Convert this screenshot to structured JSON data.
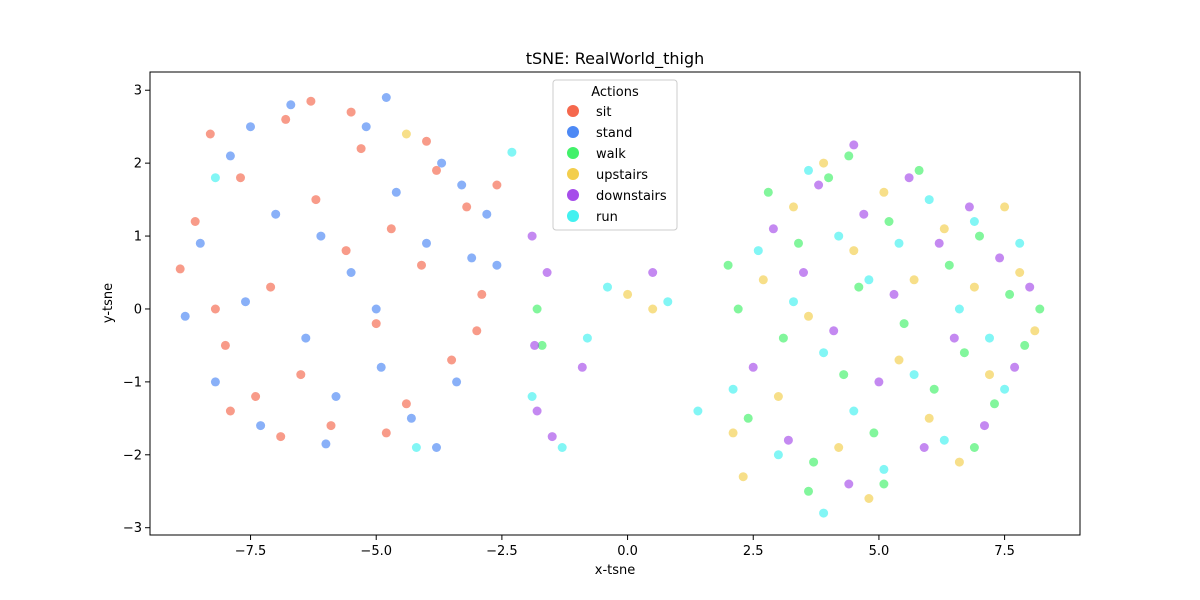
{
  "chart_data": {
    "type": "scatter",
    "title": "tSNE: RealWorld_thigh",
    "xlabel": "x-tsne",
    "ylabel": "y-tsne",
    "xlim": [
      -9.5,
      9.0
    ],
    "ylim": [
      -3.1,
      3.25
    ],
    "xticks": [
      -7.5,
      -5.0,
      -2.5,
      0.0,
      2.5,
      5.0,
      7.5
    ],
    "xtick_labels": [
      "−7.5",
      "−5.0",
      "−2.5",
      "0.0",
      "2.5",
      "5.0",
      "7.5"
    ],
    "yticks": [
      -3,
      -2,
      -1,
      0,
      1,
      2,
      3
    ],
    "ytick_labels": [
      "−3",
      "−2",
      "−1",
      "0",
      "1",
      "2",
      "3"
    ],
    "grid": false,
    "legend": {
      "title": "Actions",
      "placement": "upper-center"
    },
    "series": [
      {
        "name": "sit",
        "color": "#f4583a",
        "points": [
          [
            -8.9,
            0.55
          ],
          [
            -8.6,
            1.2
          ],
          [
            -8.3,
            2.4
          ],
          [
            -8.0,
            -0.5
          ],
          [
            -7.7,
            1.8
          ],
          [
            -7.4,
            -1.2
          ],
          [
            -7.1,
            0.3
          ],
          [
            -6.8,
            2.6
          ],
          [
            -6.5,
            -0.9
          ],
          [
            -6.2,
            1.5
          ],
          [
            -5.9,
            -1.6
          ],
          [
            -5.6,
            0.8
          ],
          [
            -5.3,
            2.2
          ],
          [
            -5.0,
            -0.2
          ],
          [
            -4.7,
            1.1
          ],
          [
            -4.4,
            -1.3
          ],
          [
            -4.1,
            0.6
          ],
          [
            -3.8,
            1.9
          ],
          [
            -3.5,
            -0.7
          ],
          [
            -3.2,
            1.4
          ],
          [
            -2.9,
            0.2
          ],
          [
            -2.6,
            1.7
          ],
          [
            -6.3,
            2.85
          ],
          [
            -4.8,
            -1.7
          ],
          [
            -7.9,
            -1.4
          ],
          [
            -3.0,
            -0.3
          ],
          [
            -8.2,
            0.0
          ],
          [
            -5.5,
            2.7
          ],
          [
            -6.9,
            -1.75
          ],
          [
            -4.0,
            2.3
          ]
        ]
      },
      {
        "name": "stand",
        "color": "#3a7cf4",
        "points": [
          [
            -8.8,
            -0.1
          ],
          [
            -8.5,
            0.9
          ],
          [
            -8.2,
            -1.0
          ],
          [
            -7.9,
            2.1
          ],
          [
            -7.6,
            0.1
          ],
          [
            -7.3,
            -1.6
          ],
          [
            -7.0,
            1.3
          ],
          [
            -6.7,
            2.8
          ],
          [
            -6.4,
            -0.4
          ],
          [
            -6.1,
            1.0
          ],
          [
            -5.8,
            -1.2
          ],
          [
            -5.5,
            0.5
          ],
          [
            -5.2,
            2.5
          ],
          [
            -4.9,
            -0.8
          ],
          [
            -4.6,
            1.6
          ],
          [
            -4.3,
            -1.5
          ],
          [
            -4.0,
            0.9
          ],
          [
            -3.7,
            2.0
          ],
          [
            -3.4,
            -1.0
          ],
          [
            -3.1,
            0.7
          ],
          [
            -2.8,
            1.3
          ],
          [
            -2.6,
            0.6
          ],
          [
            -4.8,
            2.9
          ],
          [
            -3.8,
            -1.9
          ],
          [
            -6.0,
            -1.85
          ],
          [
            -7.5,
            2.5
          ],
          [
            -3.3,
            1.7
          ],
          [
            -5.0,
            0.0
          ]
        ]
      },
      {
        "name": "walk",
        "color": "#2ef05a",
        "points": [
          [
            2.0,
            0.6
          ],
          [
            2.4,
            -1.5
          ],
          [
            2.8,
            1.6
          ],
          [
            3.1,
            -0.4
          ],
          [
            3.4,
            0.9
          ],
          [
            3.7,
            -2.1
          ],
          [
            4.0,
            1.8
          ],
          [
            4.3,
            -0.9
          ],
          [
            4.6,
            0.3
          ],
          [
            4.9,
            -1.7
          ],
          [
            5.2,
            1.2
          ],
          [
            5.5,
            -0.2
          ],
          [
            5.8,
            1.9
          ],
          [
            6.1,
            -1.1
          ],
          [
            6.4,
            0.6
          ],
          [
            6.7,
            -0.6
          ],
          [
            7.0,
            1.0
          ],
          [
            7.3,
            -1.3
          ],
          [
            7.6,
            0.2
          ],
          [
            7.9,
            -0.5
          ],
          [
            8.2,
            0.0
          ],
          [
            3.6,
            -2.5
          ],
          [
            5.1,
            -2.4
          ],
          [
            4.4,
            2.1
          ],
          [
            2.2,
            0.0
          ],
          [
            6.9,
            -1.9
          ],
          [
            -1.8,
            0.0
          ],
          [
            -1.7,
            -0.5
          ]
        ]
      },
      {
        "name": "upstairs",
        "color": "#f2c93a",
        "points": [
          [
            2.3,
            -2.3
          ],
          [
            2.7,
            0.4
          ],
          [
            3.0,
            -1.2
          ],
          [
            3.3,
            1.4
          ],
          [
            3.6,
            -0.1
          ],
          [
            3.9,
            2.0
          ],
          [
            4.2,
            -1.9
          ],
          [
            4.5,
            0.8
          ],
          [
            4.8,
            -2.6
          ],
          [
            5.1,
            1.6
          ],
          [
            5.4,
            -0.7
          ],
          [
            5.7,
            0.4
          ],
          [
            6.0,
            -1.5
          ],
          [
            6.3,
            1.1
          ],
          [
            6.6,
            -2.1
          ],
          [
            6.9,
            0.3
          ],
          [
            7.2,
            -0.9
          ],
          [
            7.5,
            1.4
          ],
          [
            7.8,
            0.5
          ],
          [
            8.1,
            -0.3
          ],
          [
            -4.4,
            2.4
          ],
          [
            0.0,
            0.2
          ],
          [
            0.5,
            0.0
          ],
          [
            2.1,
            -1.7
          ]
        ]
      },
      {
        "name": "downstairs",
        "color": "#9c3ae8",
        "points": [
          [
            2.5,
            -0.8
          ],
          [
            2.9,
            1.1
          ],
          [
            3.2,
            -1.8
          ],
          [
            3.5,
            0.5
          ],
          [
            3.8,
            1.7
          ],
          [
            4.1,
            -0.3
          ],
          [
            4.4,
            -2.4
          ],
          [
            4.7,
            1.3
          ],
          [
            5.0,
            -1.0
          ],
          [
            5.3,
            0.2
          ],
          [
            5.6,
            1.8
          ],
          [
            5.9,
            -1.9
          ],
          [
            6.2,
            0.9
          ],
          [
            6.5,
            -0.4
          ],
          [
            6.8,
            1.4
          ],
          [
            7.1,
            -1.6
          ],
          [
            7.4,
            0.7
          ],
          [
            7.7,
            -0.8
          ],
          [
            8.0,
            0.3
          ],
          [
            4.5,
            2.25
          ],
          [
            -1.8,
            -1.4
          ],
          [
            -1.5,
            -1.75
          ],
          [
            -0.9,
            -0.8
          ],
          [
            0.5,
            0.5
          ],
          [
            -1.85,
            -0.5
          ],
          [
            -1.6,
            0.5
          ],
          [
            -1.9,
            1.0
          ]
        ]
      },
      {
        "name": "run",
        "color": "#2ef0ee",
        "points": [
          [
            2.1,
            -1.1
          ],
          [
            2.6,
            0.8
          ],
          [
            3.0,
            -2.0
          ],
          [
            3.3,
            0.1
          ],
          [
            3.6,
            1.9
          ],
          [
            3.9,
            -0.6
          ],
          [
            4.2,
            1.0
          ],
          [
            4.5,
            -1.4
          ],
          [
            4.8,
            0.4
          ],
          [
            5.1,
            -2.2
          ],
          [
            5.4,
            0.9
          ],
          [
            5.7,
            -0.9
          ],
          [
            6.0,
            1.5
          ],
          [
            6.3,
            -1.8
          ],
          [
            6.6,
            0.0
          ],
          [
            6.9,
            1.2
          ],
          [
            7.2,
            -0.4
          ],
          [
            7.5,
            -1.1
          ],
          [
            7.8,
            0.9
          ],
          [
            3.9,
            -2.8
          ],
          [
            1.4,
            -1.4
          ],
          [
            0.8,
            0.1
          ],
          [
            -0.4,
            0.3
          ],
          [
            -1.3,
            -1.9
          ],
          [
            -0.8,
            -0.4
          ],
          [
            -8.2,
            1.8
          ],
          [
            -4.2,
            -1.9
          ],
          [
            -2.3,
            2.15
          ],
          [
            -1.9,
            -1.2
          ]
        ]
      }
    ]
  }
}
